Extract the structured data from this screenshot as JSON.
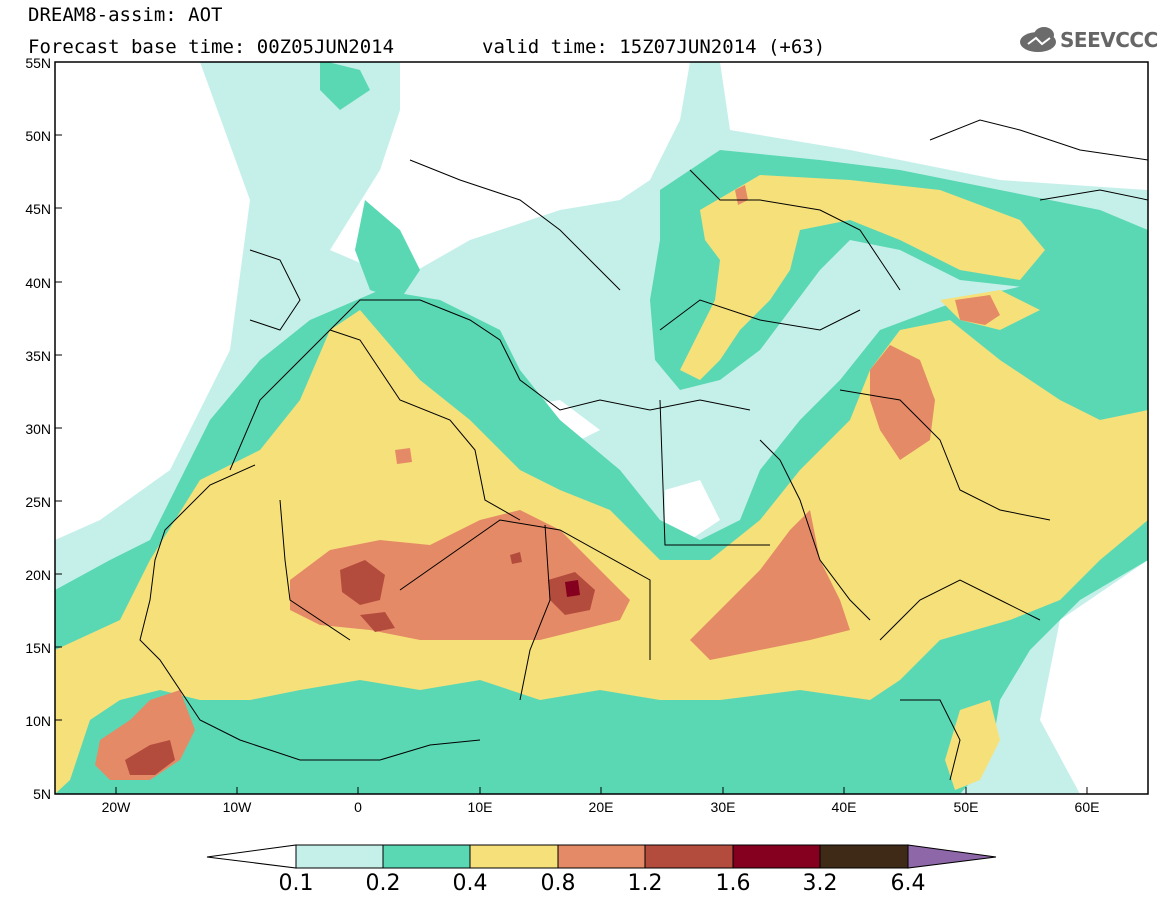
{
  "header": {
    "title": "DREAM8-assim: AOT",
    "base_time": "Forecast base time: 00Z05JUN2014",
    "valid_time": "valid time: 15Z07JUN2014 (+63)",
    "logo_text": "SEEVCCC"
  },
  "map": {
    "projection": "lat-lon",
    "lat_range": [
      5,
      55
    ],
    "lon_range": [
      -25,
      65
    ],
    "lat_labels": [
      "55N",
      "50N",
      "45N",
      "40N",
      "35N",
      "30N",
      "25N",
      "20N",
      "15N",
      "10N",
      "5N"
    ],
    "lon_labels": [
      "20W",
      "10W",
      "0",
      "10E",
      "20E",
      "30E",
      "40E",
      "50E",
      "60E"
    ]
  },
  "colorbar": {
    "labels": [
      "0.1",
      "0.2",
      "0.4",
      "0.8",
      "1.2",
      "1.6",
      "3.2",
      "6.4"
    ],
    "colors": [
      "#c5f0ea",
      "#5ad8b4",
      "#f6e07a",
      "#e58a66",
      "#b44c3e",
      "#84001e",
      "#3f2a18",
      "#8e67a8"
    ]
  }
}
